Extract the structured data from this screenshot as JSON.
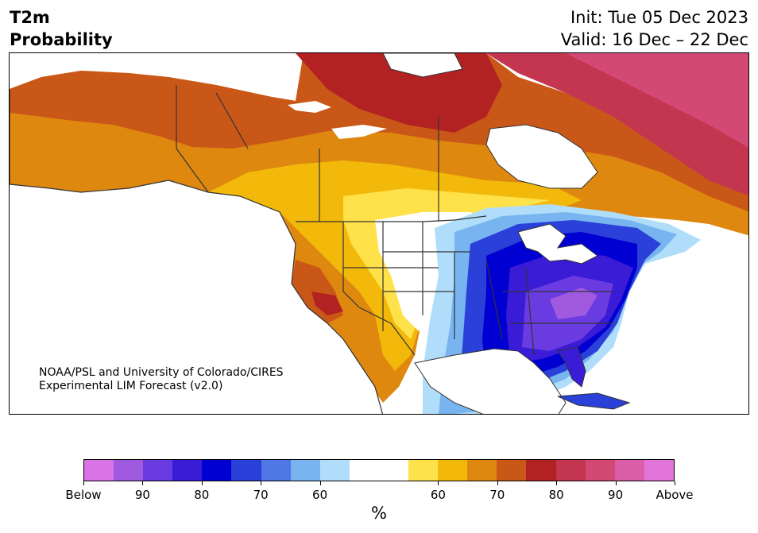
{
  "title": {
    "line1": "T2m",
    "line2": "Probability"
  },
  "dates": {
    "init": "Init: Tue 05 Dec 2023",
    "valid": "Valid: 16 Dec – 22 Dec"
  },
  "credit": {
    "line1": "NOAA/PSL and University of Colorado/CIRES",
    "line2": "Experimental LIM Forecast (v2.0)"
  },
  "colorbar": {
    "units": "%",
    "colors": [
      "#d973e6",
      "#a05ae0",
      "#6a3be0",
      "#3a1bd6",
      "#0000d2",
      "#2a40d8",
      "#4f78e6",
      "#78b4f0",
      "#b0defa",
      "#ffffff",
      "#ffffff",
      "#ffe14a",
      "#f2b90a",
      "#de8810",
      "#c95718",
      "#b22222",
      "#c4354f",
      "#d24a73",
      "#da5fa8",
      "#e374d9"
    ],
    "tick_labels": [
      "Below",
      "90",
      "80",
      "70",
      "60",
      "60",
      "70",
      "80",
      "90",
      "Above"
    ]
  }
}
